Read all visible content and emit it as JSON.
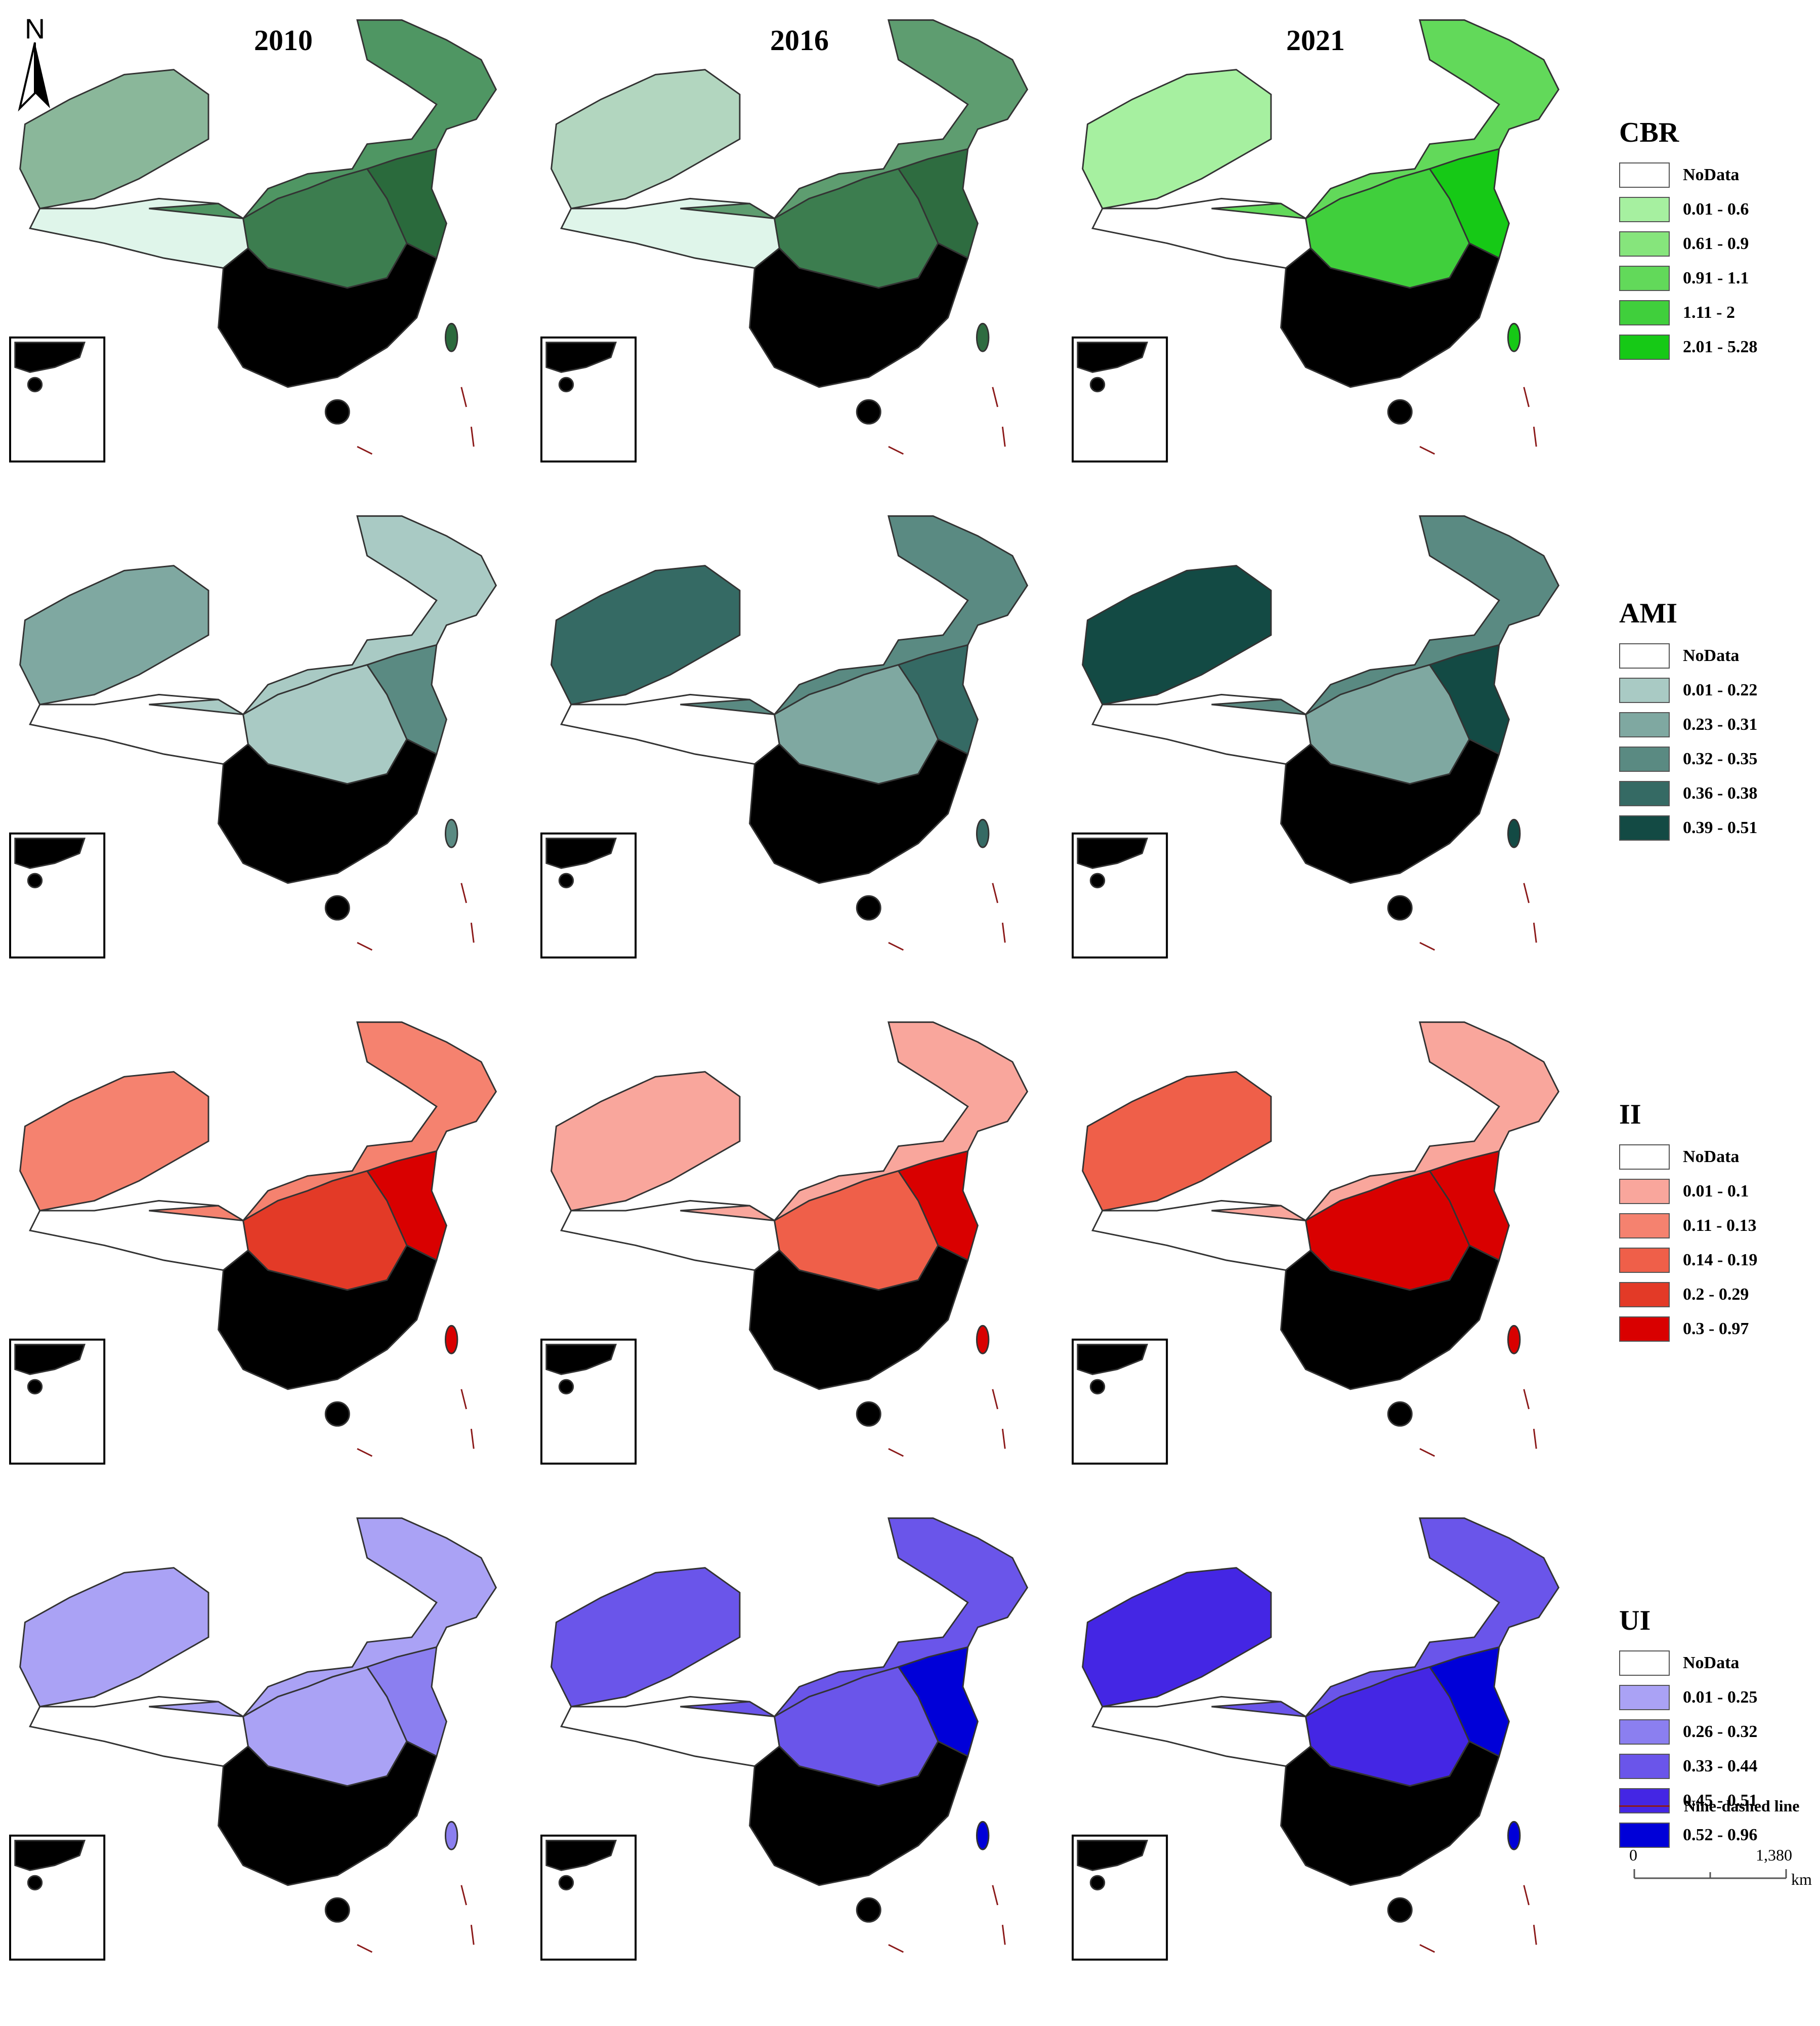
{
  "years": [
    "2010",
    "2016",
    "2021"
  ],
  "north_label": "N",
  "indicators": [
    {
      "title": "CBR",
      "nodata_label": "NoData",
      "classes": [
        {
          "label": "0.01 - 0.6",
          "color": "#a6f0a0"
        },
        {
          "label": "0.61 - 0.9",
          "color": "#86e57c"
        },
        {
          "label": "0.91 - 1.1",
          "color": "#62d95a"
        },
        {
          "label": "1.11 - 2",
          "color": "#40cf3c"
        },
        {
          "label": "2.01 - 5.28",
          "color": "#16c916"
        }
      ],
      "map_colors": [
        [
          "#dff5ea",
          "#8ab79a",
          "#4f9663",
          "#3c7d4f",
          "#2a6a3c"
        ],
        [
          "#dff5ea",
          "#b2d6bf",
          "#5e9d70",
          "#3c7d4f",
          "#2e6c40"
        ],
        [
          "#ffffff",
          "#a6f0a0",
          "#62d95a",
          "#40cf3c",
          "#16c916"
        ]
      ]
    },
    {
      "title": "AMI",
      "nodata_label": "NoData",
      "classes": [
        {
          "label": "0.01 - 0.22",
          "color": "#a9cac4"
        },
        {
          "label": "0.23 - 0.31",
          "color": "#7fa8a1"
        },
        {
          "label": "0.32 - 0.35",
          "color": "#5a8a82"
        },
        {
          "label": "0.36 - 0.38",
          "color": "#356a64"
        },
        {
          "label": "0.39 - 0.51",
          "color": "#134a44"
        }
      ],
      "map_colors": [
        [
          "#ffffff",
          "#7fa8a1",
          "#a9cac4",
          "#a9cac4",
          "#5a8a82"
        ],
        [
          "#ffffff",
          "#356a64",
          "#5a8a82",
          "#7fa8a1",
          "#356a64"
        ],
        [
          "#ffffff",
          "#134a44",
          "#5a8a82",
          "#7fa8a1",
          "#134a44"
        ]
      ]
    },
    {
      "title": "II",
      "nodata_label": "NoData",
      "classes": [
        {
          "label": "0.01 - 0.1",
          "color": "#f9a69c"
        },
        {
          "label": "0.11 - 0.13",
          "color": "#f5826f"
        },
        {
          "label": "0.14 - 0.19",
          "color": "#ef5f49"
        },
        {
          "label": "0.2 - 0.29",
          "color": "#e33a27"
        },
        {
          "label": "0.3 - 0.97",
          "color": "#d90000"
        }
      ],
      "map_colors": [
        [
          "#ffffff",
          "#f5826f",
          "#f5826f",
          "#e33a27",
          "#d90000"
        ],
        [
          "#ffffff",
          "#f9a69c",
          "#f9a69c",
          "#ef5f49",
          "#d90000"
        ],
        [
          "#ffffff",
          "#ef5f49",
          "#f9a69c",
          "#d90000",
          "#d90000"
        ]
      ]
    },
    {
      "title": "UI",
      "nodata_label": "NoData",
      "classes": [
        {
          "label": "0.01 - 0.25",
          "color": "#aaa2f5"
        },
        {
          "label": "0.26 - 0.32",
          "color": "#8b7ff0"
        },
        {
          "label": "0.33 - 0.44",
          "color": "#6a55ea"
        },
        {
          "label": "0.45 - 0.51",
          "color": "#4426e4"
        },
        {
          "label": "0.52 - 0.96",
          "color": "#0000d8"
        }
      ],
      "map_colors": [
        [
          "#ffffff",
          "#aaa2f5",
          "#aaa2f5",
          "#aaa2f5",
          "#8b7ff0"
        ],
        [
          "#ffffff",
          "#6a55ea",
          "#6a55ea",
          "#6a55ea",
          "#0000d8"
        ],
        [
          "#ffffff",
          "#4426e4",
          "#6a55ea",
          "#4426e4",
          "#0000d8"
        ]
      ]
    }
  ],
  "nine_dashed_label": "Nine-dashed line",
  "scale_bar": {
    "start": "0",
    "end": "1,380",
    "unit": "km"
  }
}
